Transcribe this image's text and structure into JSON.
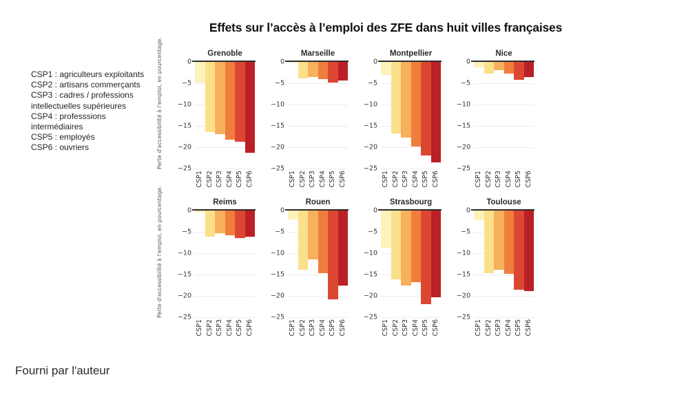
{
  "page": {
    "title": "Effets sur l’accès à l’emploi des ZFE dans huit villes françaises",
    "footer": "Fourni par l'auteur"
  },
  "legend": {
    "items": [
      {
        "code": "CSP1",
        "label": "agriculteurs exploitants"
      },
      {
        "code": "CSP2",
        "label": "artisans commerçants"
      },
      {
        "code": "CSP3",
        "label": "cadres / professions intellectuelles supérieures"
      },
      {
        "code": "CSP4",
        "label": "professsions intermédiaires"
      },
      {
        "code": "CSP5",
        "label": "employés"
      },
      {
        "code": "CSP6",
        "label": "ouvriers"
      }
    ]
  },
  "chart_data": {
    "type": "bar",
    "title": "Effets sur l’accès à l’emploi des ZFE dans huit villes françaises",
    "ylabel": "Perte d'accessibilité à l'emploi, en pourcentage.",
    "categories": [
      "CSP1",
      "CSP2",
      "CSP3",
      "CSP4",
      "CSP5",
      "CSP6"
    ],
    "bar_colors": [
      "#FDF2BA",
      "#FBE08C",
      "#F7B05B",
      "#EF7E3D",
      "#DC4732",
      "#BB2026"
    ],
    "ylim": [
      -25,
      0
    ],
    "yticks": [
      0,
      -5,
      -10,
      -15,
      -20,
      -25
    ],
    "grid": true,
    "legend_position": "left",
    "subplots": [
      {
        "city": "Grenoble",
        "values": [
          -4.8,
          -16.5,
          -16.9,
          -18.2,
          -18.7,
          -21.3
        ]
      },
      {
        "city": "Marseille",
        "values": [
          -0.2,
          -3.9,
          -3.6,
          -4.1,
          -4.8,
          -4.3
        ]
      },
      {
        "city": "Montpellier",
        "values": [
          -3.1,
          -16.8,
          -17.7,
          -19.8,
          -21.9,
          -23.5
        ]
      },
      {
        "city": "Nice",
        "values": [
          -1.3,
          -2.7,
          -1.9,
          -2.7,
          -4.2,
          -3.5
        ]
      },
      {
        "city": "Reims",
        "values": [
          -0.5,
          -6.1,
          -5.4,
          -5.8,
          -6.4,
          -6.1
        ]
      },
      {
        "city": "Rouen",
        "values": [
          -2.1,
          -13.9,
          -11.4,
          -14.6,
          -20.8,
          -17.5
        ]
      },
      {
        "city": "Strasbourg",
        "values": [
          -8.7,
          -16.1,
          -17.5,
          -16.7,
          -22.0,
          -20.4
        ]
      },
      {
        "city": "Toulouse",
        "values": [
          -2.3,
          -14.6,
          -13.9,
          -14.9,
          -18.5,
          -18.8
        ]
      }
    ]
  }
}
